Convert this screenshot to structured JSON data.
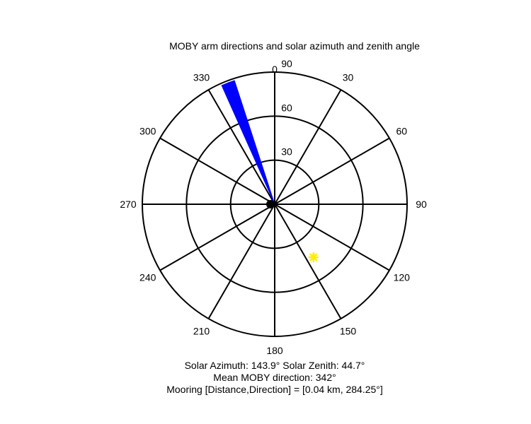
{
  "chart_data": {
    "type": "polar",
    "title": "MOBY arm directions and solar azimuth and zenith angle",
    "angle_ticks": [
      "0",
      "30",
      "60",
      "90",
      "120",
      "150",
      "180",
      "210",
      "240",
      "270",
      "300",
      "330"
    ],
    "angle_tick_values": [
      0,
      30,
      60,
      90,
      120,
      150,
      180,
      210,
      240,
      270,
      300,
      330
    ],
    "radial_ticks": [
      "30",
      "60",
      "90"
    ],
    "radial_tick_values": [
      30,
      60,
      90
    ],
    "r_max": 90,
    "angle_direction": "clockwise",
    "angle_zero": "top",
    "grid": true,
    "arm_sector": {
      "from_deg": 336,
      "to_deg": 342,
      "color": "#0000ff"
    },
    "sun_marker": {
      "azimuth": 143.9,
      "zenith": 44.7,
      "color": "#ffee00"
    },
    "center_marker": {
      "color": "#000000"
    },
    "captions": [
      "Solar Azimuth: 143.9°   Solar Zenith: 44.7°",
      "Mean MOBY direction: 342°",
      "Mooring [Distance,Direction] = [0.04 km, 284.25°]"
    ]
  }
}
